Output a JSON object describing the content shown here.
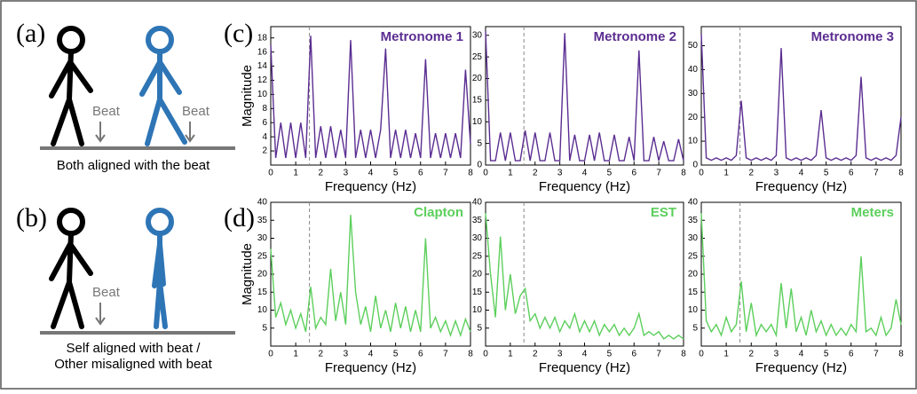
{
  "figure": {
    "panel_a": {
      "label": "(a)",
      "beat_labels": [
        "Beat",
        "Beat"
      ],
      "caption": "Both aligned with the beat"
    },
    "panel_b": {
      "label": "(b)",
      "beat_label": "Beat",
      "caption": [
        "Self aligned with beat /",
        "Other misaligned with beat"
      ]
    },
    "panel_c": {
      "label": "(c)"
    },
    "panel_d": {
      "label": "(d)"
    }
  },
  "chart_data": [
    {
      "type": "line",
      "title": "Metronome 1",
      "x_label": "Frequency (Hz)",
      "y_label": "Magnitude",
      "x": [
        0,
        0.2,
        0.4,
        0.6,
        0.8,
        1.0,
        1.2,
        1.4,
        1.6,
        1.8,
        2.0,
        2.2,
        2.4,
        2.6,
        2.8,
        3.0,
        3.2,
        3.4,
        3.6,
        3.8,
        4.0,
        4.2,
        4.4,
        4.6,
        4.8,
        5.0,
        5.2,
        5.4,
        5.6,
        5.8,
        6.0,
        6.2,
        6.4,
        6.6,
        6.8,
        7.0,
        7.2,
        7.4,
        7.6,
        7.8,
        8.0
      ],
      "series": [
        {
          "color": "#5b2d91",
          "values": [
            17,
            1,
            6,
            1,
            6,
            1,
            6,
            1,
            18.3,
            1,
            5.5,
            1,
            5.5,
            1,
            5,
            1,
            17.7,
            1,
            5,
            1,
            5,
            1,
            5,
            16.5,
            1,
            5,
            1,
            5,
            1,
            4.5,
            1,
            15,
            1,
            4.5,
            1,
            4.5,
            1,
            4.5,
            1,
            13.5,
            3
          ]
        }
      ],
      "xlim": [
        0,
        8
      ],
      "xticks": [
        0,
        1,
        2,
        3,
        4,
        5,
        6,
        7,
        8
      ],
      "ylim": [
        0,
        19.6
      ],
      "yticks": [
        2,
        4,
        6,
        8,
        10,
        12,
        14,
        16,
        18
      ],
      "reference_x": 1.55
    },
    {
      "type": "line",
      "title": "Metronome 2",
      "x_label": "Frequency (Hz)",
      "x": [
        0,
        0.2,
        0.4,
        0.6,
        0.8,
        1.0,
        1.2,
        1.4,
        1.6,
        1.8,
        2.0,
        2.2,
        2.4,
        2.6,
        2.8,
        3.0,
        3.2,
        3.4,
        3.6,
        3.8,
        4.0,
        4.2,
        4.4,
        4.6,
        4.8,
        5.0,
        5.2,
        5.4,
        5.6,
        5.8,
        6.0,
        6.2,
        6.4,
        6.6,
        6.8,
        7.0,
        7.2,
        7.4,
        7.6,
        7.8,
        8.0
      ],
      "series": [
        {
          "color": "#5b2d91",
          "values": [
            31,
            1,
            1,
            7.5,
            1,
            7.5,
            1,
            1,
            8,
            1,
            7.5,
            1,
            1,
            7.5,
            1,
            1,
            30.5,
            1,
            7,
            1,
            1,
            7,
            1,
            7.5,
            1,
            1,
            7,
            1,
            1,
            6.5,
            1,
            26.5,
            1,
            1,
            6.5,
            1,
            5.5,
            1,
            1,
            6,
            1
          ]
        }
      ],
      "xlim": [
        0,
        8
      ],
      "xticks": [
        0,
        1,
        2,
        3,
        4,
        5,
        6,
        7,
        8
      ],
      "ylim": [
        0,
        32
      ],
      "yticks": [
        0,
        5,
        10,
        15,
        20,
        25,
        30
      ],
      "reference_x": 1.55
    },
    {
      "type": "line",
      "title": "Metronome 3",
      "x_label": "Frequency (Hz)",
      "x": [
        0,
        0.2,
        0.4,
        0.6,
        0.8,
        1.0,
        1.2,
        1.4,
        1.6,
        1.8,
        2.0,
        2.2,
        2.4,
        2.6,
        2.8,
        3.0,
        3.2,
        3.4,
        3.6,
        3.8,
        4.0,
        4.2,
        4.4,
        4.6,
        4.8,
        5.0,
        5.2,
        5.4,
        5.6,
        5.8,
        6.0,
        6.2,
        6.4,
        6.6,
        6.8,
        7.0,
        7.2,
        7.4,
        7.6,
        7.8,
        8.0
      ],
      "series": [
        {
          "color": "#5b2d91",
          "values": [
            55,
            3,
            2,
            3,
            2,
            3,
            2,
            4,
            27,
            3,
            2,
            3,
            2,
            3,
            2,
            4,
            49,
            3,
            2,
            3,
            2,
            3,
            2,
            4,
            23,
            3,
            2,
            3,
            2,
            3,
            2,
            4,
            37,
            3,
            2,
            3,
            2,
            3,
            2,
            4,
            20
          ]
        }
      ],
      "xlim": [
        0,
        8
      ],
      "xticks": [
        0,
        1,
        2,
        3,
        4,
        5,
        6,
        7,
        8
      ],
      "ylim": [
        0,
        58
      ],
      "yticks": [
        0,
        10,
        20,
        30,
        40,
        50
      ],
      "reference_x": 1.55
    },
    {
      "type": "line",
      "title": "Clapton",
      "x_label": "Frequency (Hz)",
      "y_label": "Magnitude",
      "x": [
        0,
        0.2,
        0.4,
        0.6,
        0.8,
        1.0,
        1.2,
        1.4,
        1.6,
        1.8,
        2.0,
        2.2,
        2.4,
        2.6,
        2.8,
        3.0,
        3.2,
        3.4,
        3.6,
        3.8,
        4.0,
        4.2,
        4.4,
        4.6,
        4.8,
        5.0,
        5.2,
        5.4,
        5.6,
        5.8,
        6.0,
        6.2,
        6.4,
        6.6,
        6.8,
        7.0,
        7.2,
        7.4,
        7.6,
        7.8,
        8.0
      ],
      "series": [
        {
          "color": "#5ccf5c",
          "values": [
            27,
            8,
            12,
            6,
            10,
            5,
            9,
            4,
            16.5,
            5,
            8,
            6,
            21.5,
            7,
            15,
            6,
            36.5,
            15,
            6,
            11,
            4,
            14,
            5,
            10,
            4,
            12,
            5,
            11,
            4,
            10,
            4,
            30,
            5,
            8,
            4,
            7,
            3,
            7,
            3,
            7.5,
            4
          ]
        }
      ],
      "xlim": [
        0,
        8
      ],
      "xticks": [
        0,
        1,
        2,
        3,
        4,
        5,
        6,
        7,
        8
      ],
      "ylim": [
        0,
        40
      ],
      "yticks": [
        5,
        10,
        15,
        20,
        25,
        30,
        35,
        40
      ],
      "reference_x": 1.55
    },
    {
      "type": "line",
      "title": "EST",
      "x_label": "Frequency (Hz)",
      "x": [
        0,
        0.2,
        0.4,
        0.6,
        0.8,
        1.0,
        1.2,
        1.4,
        1.6,
        1.8,
        2.0,
        2.2,
        2.4,
        2.6,
        2.8,
        3.0,
        3.2,
        3.4,
        3.6,
        3.8,
        4.0,
        4.2,
        4.4,
        4.6,
        4.8,
        5.0,
        5.2,
        5.4,
        5.6,
        5.8,
        6.0,
        6.2,
        6.4,
        6.6,
        6.8,
        7.0,
        7.2,
        7.4,
        7.6,
        7.8,
        8.0
      ],
      "series": [
        {
          "color": "#5ccf5c",
          "values": [
            37,
            20,
            8,
            30.5,
            10,
            20,
            9,
            14,
            16,
            7,
            9,
            5,
            8,
            5,
            8,
            4,
            7,
            5,
            9,
            4,
            7,
            4,
            7,
            3,
            6,
            4,
            6,
            3,
            5,
            3,
            5,
            9,
            3,
            4,
            3,
            4,
            2,
            3,
            2,
            3,
            2
          ]
        }
      ],
      "xlim": [
        0,
        8
      ],
      "xticks": [
        0,
        1,
        2,
        3,
        4,
        5,
        6,
        7,
        8
      ],
      "ylim": [
        0,
        40
      ],
      "yticks": [
        5,
        10,
        15,
        20,
        25,
        30,
        35,
        40
      ],
      "reference_x": 1.55
    },
    {
      "type": "line",
      "title": "Meters",
      "x_label": "Frequency (Hz)",
      "x": [
        0,
        0.2,
        0.4,
        0.6,
        0.8,
        1.0,
        1.2,
        1.4,
        1.6,
        1.8,
        2.0,
        2.2,
        2.4,
        2.6,
        2.8,
        3.0,
        3.2,
        3.4,
        3.6,
        3.8,
        4.0,
        4.2,
        4.4,
        4.6,
        4.8,
        5.0,
        5.2,
        5.4,
        5.6,
        5.8,
        6.0,
        6.2,
        6.4,
        6.6,
        6.8,
        7.0,
        7.2,
        7.4,
        7.6,
        7.8,
        8.0
      ],
      "series": [
        {
          "color": "#5ccf5c",
          "values": [
            37,
            7,
            4,
            6,
            3,
            8,
            4,
            6,
            18,
            4,
            12,
            3,
            6,
            4,
            6,
            3,
            17.5,
            5,
            16,
            4,
            8,
            3,
            10,
            4,
            7,
            3,
            6,
            3,
            5,
            3,
            6,
            4,
            25,
            4,
            5,
            3,
            8,
            3,
            5,
            13,
            6
          ]
        }
      ],
      "xlim": [
        0,
        8
      ],
      "xticks": [
        0,
        1,
        2,
        3,
        4,
        5,
        6,
        7,
        8
      ],
      "ylim": [
        0,
        40
      ],
      "yticks": [
        5,
        10,
        15,
        20,
        25,
        30,
        35,
        40
      ],
      "reference_x": 1.55
    }
  ]
}
